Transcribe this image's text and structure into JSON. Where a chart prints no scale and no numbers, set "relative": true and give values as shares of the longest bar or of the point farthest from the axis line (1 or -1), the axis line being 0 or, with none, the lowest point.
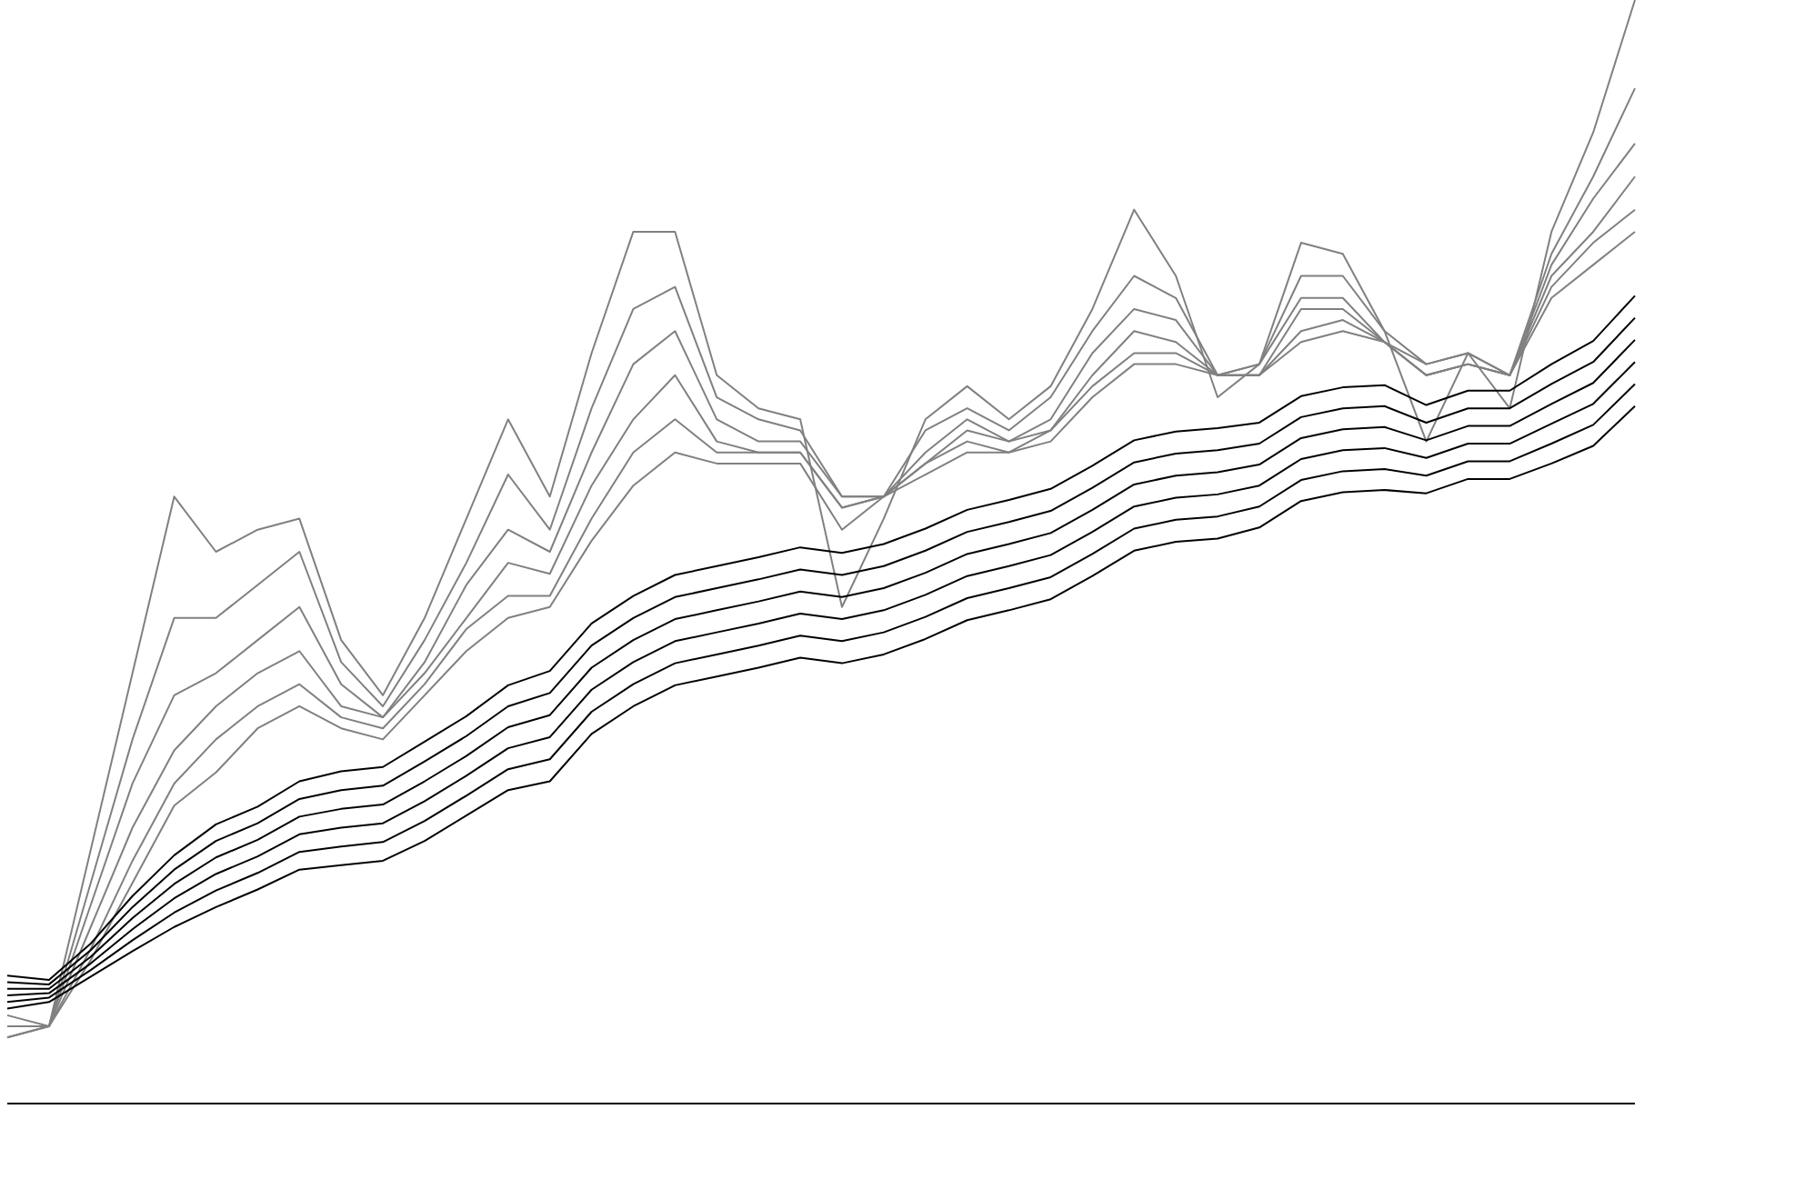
{
  "chart_data": {
    "type": "line",
    "relative": true,
    "legend": false,
    "grid": false,
    "categories": [
      null,
      null,
      null,
      null,
      null,
      null,
      null,
      null,
      null,
      null,
      null,
      null,
      null,
      null,
      null,
      null,
      null,
      null,
      null,
      null,
      null,
      null,
      null,
      null,
      null,
      null,
      null,
      null,
      null,
      null,
      null,
      null,
      null,
      null,
      null,
      null,
      null,
      null,
      null,
      null
    ],
    "series": [
      {
        "color": "#808080",
        "values": [
          0.08,
          0.07,
          0.23,
          0.39,
          0.55,
          0.5,
          0.52,
          0.53,
          0.42,
          0.37,
          0.44,
          0.53,
          0.62,
          0.55,
          0.68,
          0.79,
          0.79,
          0.66,
          0.63,
          0.62,
          0.45,
          0.53,
          0.62,
          0.65,
          0.62,
          0.65,
          0.72,
          0.81,
          0.75,
          0.64,
          0.67,
          0.78,
          0.77,
          0.7,
          0.6,
          0.68,
          0.63,
          0.79,
          0.88,
          1.0
        ]
      },
      {
        "color": "#808080",
        "values": [
          0.07,
          0.07,
          0.2,
          0.33,
          0.44,
          0.44,
          0.47,
          0.5,
          0.4,
          0.36,
          0.42,
          0.49,
          0.57,
          0.52,
          0.63,
          0.72,
          0.74,
          0.64,
          0.62,
          0.61,
          0.55,
          0.55,
          0.61,
          0.63,
          0.61,
          0.64,
          0.7,
          0.75,
          0.73,
          0.66,
          0.67,
          0.75,
          0.75,
          0.7,
          0.67,
          0.68,
          0.66,
          0.77,
          0.84,
          0.92
        ]
      },
      {
        "color": "#808080",
        "values": [
          0.07,
          0.07,
          0.18,
          0.29,
          0.37,
          0.39,
          0.42,
          0.45,
          0.38,
          0.35,
          0.4,
          0.47,
          0.52,
          0.5,
          0.59,
          0.67,
          0.7,
          0.62,
          0.6,
          0.6,
          0.55,
          0.55,
          0.59,
          0.62,
          0.6,
          0.62,
          0.68,
          0.72,
          0.71,
          0.66,
          0.67,
          0.73,
          0.73,
          0.69,
          0.67,
          0.68,
          0.66,
          0.76,
          0.82,
          0.87
        ]
      },
      {
        "color": "#808080",
        "values": [
          0.07,
          0.07,
          0.16,
          0.25,
          0.32,
          0.36,
          0.39,
          0.41,
          0.36,
          0.35,
          0.39,
          0.44,
          0.49,
          0.48,
          0.56,
          0.62,
          0.66,
          0.6,
          0.59,
          0.59,
          0.54,
          0.55,
          0.58,
          0.61,
          0.6,
          0.61,
          0.66,
          0.7,
          0.69,
          0.66,
          0.66,
          0.72,
          0.72,
          0.69,
          0.66,
          0.67,
          0.66,
          0.75,
          0.79,
          0.84
        ]
      },
      {
        "color": "#808080",
        "values": [
          0.06,
          0.07,
          0.14,
          0.22,
          0.29,
          0.33,
          0.36,
          0.38,
          0.35,
          0.34,
          0.38,
          0.43,
          0.46,
          0.46,
          0.53,
          0.59,
          0.62,
          0.59,
          0.59,
          0.59,
          0.54,
          0.55,
          0.58,
          0.6,
          0.59,
          0.61,
          0.65,
          0.68,
          0.68,
          0.66,
          0.66,
          0.7,
          0.71,
          0.69,
          0.66,
          0.67,
          0.66,
          0.74,
          0.78,
          0.81
        ]
      },
      {
        "color": "#808080",
        "values": [
          0.06,
          0.07,
          0.13,
          0.2,
          0.27,
          0.3,
          0.34,
          0.36,
          0.34,
          0.33,
          0.37,
          0.41,
          0.44,
          0.45,
          0.51,
          0.56,
          0.59,
          0.58,
          0.58,
          0.58,
          0.52,
          0.55,
          0.57,
          0.59,
          0.59,
          0.6,
          0.64,
          0.67,
          0.67,
          0.66,
          0.66,
          0.69,
          0.7,
          0.69,
          0.66,
          0.67,
          0.66,
          0.73,
          0.76,
          0.79
        ]
      },
      {
        "color": "#000000",
        "values": [
          0.116,
          0.112,
          0.145,
          0.188,
          0.225,
          0.253,
          0.269,
          0.292,
          0.301,
          0.305,
          0.328,
          0.351,
          0.379,
          0.392,
          0.435,
          0.46,
          0.479,
          0.487,
          0.495,
          0.504,
          0.499,
          0.507,
          0.521,
          0.538,
          0.547,
          0.557,
          0.578,
          0.601,
          0.609,
          0.612,
          0.617,
          0.641,
          0.649,
          0.651,
          0.633,
          0.646,
          0.646,
          0.67,
          0.691,
          0.732
        ]
      },
      {
        "color": "#000000",
        "values": [
          0.11,
          0.108,
          0.139,
          0.178,
          0.212,
          0.238,
          0.254,
          0.276,
          0.284,
          0.288,
          0.31,
          0.333,
          0.36,
          0.372,
          0.415,
          0.44,
          0.459,
          0.467,
          0.475,
          0.484,
          0.479,
          0.487,
          0.501,
          0.518,
          0.527,
          0.537,
          0.558,
          0.581,
          0.589,
          0.592,
          0.598,
          0.622,
          0.63,
          0.632,
          0.617,
          0.63,
          0.63,
          0.652,
          0.672,
          0.712
        ]
      },
      {
        "color": "#000000",
        "values": [
          0.104,
          0.104,
          0.133,
          0.168,
          0.199,
          0.223,
          0.239,
          0.26,
          0.267,
          0.271,
          0.292,
          0.315,
          0.341,
          0.352,
          0.395,
          0.42,
          0.439,
          0.447,
          0.455,
          0.464,
          0.459,
          0.467,
          0.481,
          0.498,
          0.507,
          0.517,
          0.538,
          0.561,
          0.569,
          0.572,
          0.579,
          0.603,
          0.611,
          0.613,
          0.601,
          0.614,
          0.614,
          0.634,
          0.653,
          0.692
        ]
      },
      {
        "color": "#000000",
        "values": [
          0.098,
          0.1,
          0.127,
          0.158,
          0.186,
          0.208,
          0.224,
          0.244,
          0.25,
          0.254,
          0.274,
          0.297,
          0.322,
          0.332,
          0.375,
          0.4,
          0.419,
          0.427,
          0.435,
          0.444,
          0.439,
          0.447,
          0.461,
          0.478,
          0.487,
          0.497,
          0.518,
          0.541,
          0.549,
          0.552,
          0.56,
          0.584,
          0.592,
          0.594,
          0.585,
          0.598,
          0.598,
          0.616,
          0.634,
          0.672
        ]
      },
      {
        "color": "#000000",
        "values": [
          0.092,
          0.096,
          0.121,
          0.148,
          0.173,
          0.193,
          0.209,
          0.228,
          0.233,
          0.237,
          0.256,
          0.279,
          0.303,
          0.312,
          0.355,
          0.38,
          0.399,
          0.407,
          0.415,
          0.424,
          0.419,
          0.427,
          0.441,
          0.458,
          0.467,
          0.477,
          0.498,
          0.521,
          0.529,
          0.532,
          0.541,
          0.565,
          0.573,
          0.575,
          0.569,
          0.582,
          0.582,
          0.598,
          0.615,
          0.652
        ]
      },
      {
        "color": "#000000",
        "values": [
          0.086,
          0.092,
          0.115,
          0.138,
          0.16,
          0.178,
          0.194,
          0.212,
          0.216,
          0.22,
          0.238,
          0.261,
          0.284,
          0.292,
          0.335,
          0.36,
          0.379,
          0.387,
          0.395,
          0.404,
          0.399,
          0.407,
          0.421,
          0.438,
          0.447,
          0.457,
          0.478,
          0.501,
          0.509,
          0.512,
          0.522,
          0.546,
          0.554,
          0.556,
          0.553,
          0.566,
          0.566,
          0.58,
          0.596,
          0.632
        ]
      }
    ]
  }
}
